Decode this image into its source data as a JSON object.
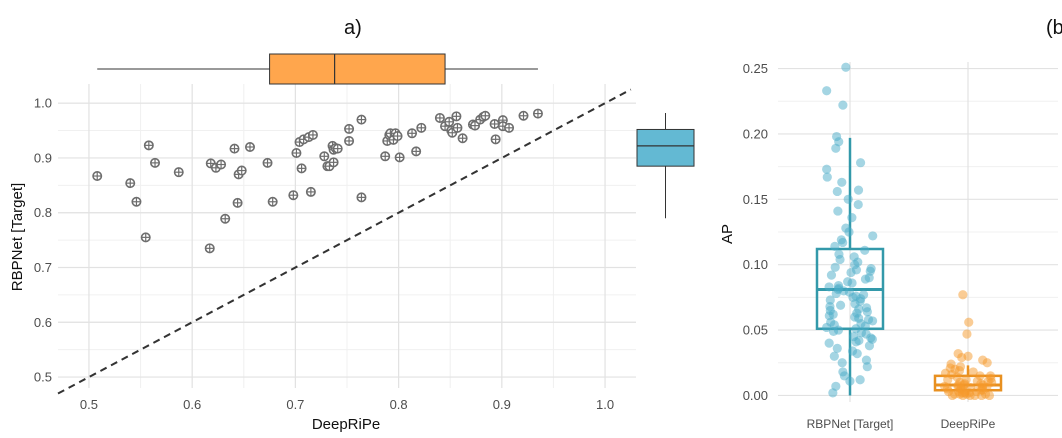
{
  "chart_data": [
    {
      "type": "scatter",
      "panel_label": "a)",
      "xlabel": "DeepRiPe",
      "ylabel": "RBPNet [Target]",
      "xlim": [
        0.47,
        1.03
      ],
      "ylim": [
        0.48,
        1.035
      ],
      "xticks": [
        0.5,
        0.6,
        0.7,
        0.8,
        0.9,
        1.0
      ],
      "xtick_labels": [
        "0.5",
        "0.6",
        "0.7",
        "0.8",
        "0.9",
        "1.0"
      ],
      "yticks": [
        0.5,
        0.6,
        0.7,
        0.8,
        0.9,
        1.0
      ],
      "ytick_labels": [
        "0.5",
        "0.6",
        "0.7",
        "0.8",
        "0.9",
        "1.0"
      ],
      "grid": true,
      "diagonal_line": true,
      "point_color": "#6e6e6e",
      "points": [
        [
          0.508,
          0.867
        ],
        [
          0.54,
          0.854
        ],
        [
          0.546,
          0.82
        ],
        [
          0.555,
          0.755
        ],
        [
          0.558,
          0.923
        ],
        [
          0.564,
          0.891
        ],
        [
          0.587,
          0.874
        ],
        [
          0.617,
          0.735
        ],
        [
          0.618,
          0.89
        ],
        [
          0.623,
          0.882
        ],
        [
          0.628,
          0.888
        ],
        [
          0.632,
          0.789
        ],
        [
          0.641,
          0.917
        ],
        [
          0.644,
          0.818
        ],
        [
          0.645,
          0.87
        ],
        [
          0.648,
          0.877
        ],
        [
          0.656,
          0.92
        ],
        [
          0.673,
          0.891
        ],
        [
          0.678,
          0.82
        ],
        [
          0.698,
          0.832
        ],
        [
          0.701,
          0.909
        ],
        [
          0.704,
          0.929
        ],
        [
          0.706,
          0.881
        ],
        [
          0.708,
          0.934
        ],
        [
          0.713,
          0.938
        ],
        [
          0.715,
          0.838
        ],
        [
          0.717,
          0.942
        ],
        [
          0.728,
          0.903
        ],
        [
          0.731,
          0.885
        ],
        [
          0.733,
          0.885
        ],
        [
          0.736,
          0.922
        ],
        [
          0.737,
          0.915
        ],
        [
          0.737,
          0.892
        ],
        [
          0.739,
          0.918
        ],
        [
          0.741,
          0.917
        ],
        [
          0.752,
          0.931
        ],
        [
          0.752,
          0.953
        ],
        [
          0.764,
          0.97
        ],
        [
          0.764,
          0.828
        ],
        [
          0.787,
          0.903
        ],
        [
          0.789,
          0.931
        ],
        [
          0.791,
          0.942
        ],
        [
          0.792,
          0.945
        ],
        [
          0.795,
          0.933
        ],
        [
          0.797,
          0.945
        ],
        [
          0.799,
          0.94
        ],
        [
          0.801,
          0.901
        ],
        [
          0.813,
          0.945
        ],
        [
          0.817,
          0.912
        ],
        [
          0.822,
          0.955
        ],
        [
          0.84,
          0.973
        ],
        [
          0.845,
          0.958
        ],
        [
          0.849,
          0.966
        ],
        [
          0.851,
          0.95
        ],
        [
          0.852,
          0.946
        ],
        [
          0.856,
          0.976
        ],
        [
          0.857,
          0.955
        ],
        [
          0.862,
          0.936
        ],
        [
          0.872,
          0.961
        ],
        [
          0.874,
          0.959
        ],
        [
          0.879,
          0.97
        ],
        [
          0.882,
          0.975
        ],
        [
          0.884,
          0.977
        ],
        [
          0.893,
          0.962
        ],
        [
          0.894,
          0.934
        ],
        [
          0.901,
          0.969
        ],
        [
          0.901,
          0.958
        ],
        [
          0.907,
          0.955
        ],
        [
          0.921,
          0.977
        ],
        [
          0.935,
          0.981
        ]
      ],
      "marginal_x_box": {
        "min": 0.508,
        "q1": 0.675,
        "median": 0.738,
        "q3": 0.845,
        "max": 0.935,
        "color": "#ffa64d"
      },
      "marginal_y_box": {
        "min": 0.79,
        "q1": 0.885,
        "median": 0.922,
        "q3": 0.952,
        "max": 0.982,
        "color": "#63b9d3"
      }
    },
    {
      "type": "box",
      "panel_label": "(b",
      "ylabel": "AP",
      "categories": [
        "RBPNet [Target]",
        "DeepRiPe"
      ],
      "ylim": [
        -0.005,
        0.255
      ],
      "yticks": [
        0.0,
        0.05,
        0.1,
        0.15,
        0.2,
        0.25
      ],
      "ytick_labels": [
        "0.00",
        "0.05",
        "0.10",
        "0.15",
        "0.20",
        "0.25"
      ],
      "grid": true,
      "series": [
        {
          "color": "#3399aa",
          "point_color": "#4aacc8",
          "box": {
            "min": 0.0,
            "q1": 0.051,
            "median": 0.081,
            "q3": 0.112,
            "max": 0.197
          },
          "values": [
            0.251,
            0.233,
            0.222,
            0.198,
            0.194,
            0.189,
            0.178,
            0.173,
            0.167,
            0.163,
            0.157,
            0.156,
            0.15,
            0.146,
            0.141,
            0.136,
            0.128,
            0.125,
            0.122,
            0.119,
            0.117,
            0.114,
            0.111,
            0.108,
            0.106,
            0.104,
            0.102,
            0.1,
            0.098,
            0.097,
            0.096,
            0.095,
            0.094,
            0.092,
            0.09,
            0.089,
            0.087,
            0.086,
            0.084,
            0.083,
            0.082,
            0.081,
            0.08,
            0.079,
            0.078,
            0.077,
            0.076,
            0.075,
            0.074,
            0.073,
            0.072,
            0.07,
            0.069,
            0.068,
            0.067,
            0.066,
            0.065,
            0.064,
            0.063,
            0.062,
            0.061,
            0.06,
            0.059,
            0.058,
            0.057,
            0.056,
            0.055,
            0.054,
            0.053,
            0.052,
            0.051,
            0.05,
            0.049,
            0.048,
            0.047,
            0.045,
            0.044,
            0.043,
            0.042,
            0.041,
            0.04,
            0.038,
            0.036,
            0.034,
            0.032,
            0.03,
            0.027,
            0.025,
            0.022,
            0.018,
            0.015,
            0.012,
            0.011,
            0.007,
            0.002
          ]
        },
        {
          "color": "#e89020",
          "point_color": "#f59a2c",
          "box": {
            "min": 0.0,
            "q1": 0.004,
            "median": 0.008,
            "q3": 0.015,
            "max": 0.023
          },
          "values": [
            0.077,
            0.056,
            0.047,
            0.032,
            0.03,
            0.029,
            0.027,
            0.025,
            0.024,
            0.022,
            0.021,
            0.02,
            0.019,
            0.018,
            0.017,
            0.016,
            0.015,
            0.015,
            0.014,
            0.013,
            0.012,
            0.012,
            0.011,
            0.011,
            0.01,
            0.01,
            0.009,
            0.009,
            0.008,
            0.008,
            0.008,
            0.007,
            0.007,
            0.006,
            0.006,
            0.006,
            0.005,
            0.005,
            0.005,
            0.004,
            0.004,
            0.004,
            0.003,
            0.003,
            0.003,
            0.002,
            0.002,
            0.002,
            0.001,
            0.001,
            0.001,
            0.001,
            0.0,
            0.0,
            0.0,
            0.0,
            0.0,
            0.0
          ]
        }
      ]
    }
  ]
}
